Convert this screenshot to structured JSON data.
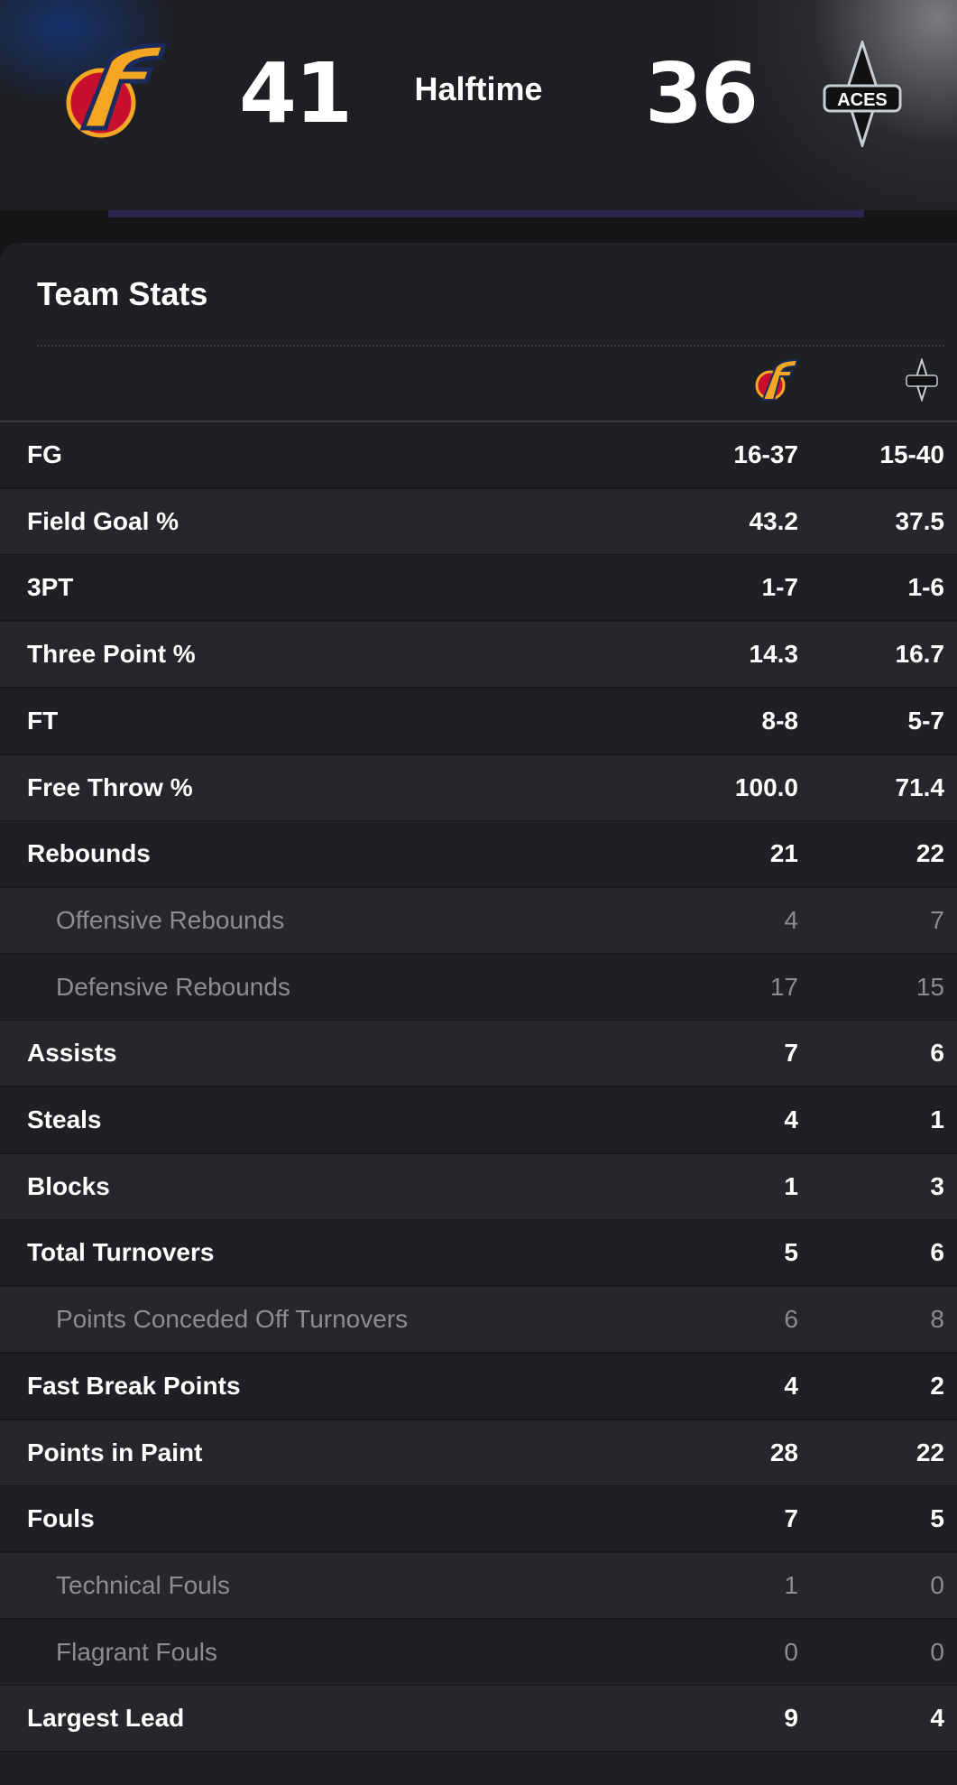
{
  "header": {
    "home_score": "41",
    "status": "Halftime",
    "away_score": "36",
    "away_logo_text": "ACES"
  },
  "title": "Team Stats",
  "table": {
    "rows": [
      {
        "label": "FG",
        "home": "16-37",
        "away": "15-40",
        "sub": false
      },
      {
        "label": "Field Goal %",
        "home": "43.2",
        "away": "37.5",
        "sub": false
      },
      {
        "label": "3PT",
        "home": "1-7",
        "away": "1-6",
        "sub": false
      },
      {
        "label": "Three Point %",
        "home": "14.3",
        "away": "16.7",
        "sub": false
      },
      {
        "label": "FT",
        "home": "8-8",
        "away": "5-7",
        "sub": false
      },
      {
        "label": "Free Throw %",
        "home": "100.0",
        "away": "71.4",
        "sub": false
      },
      {
        "label": "Rebounds",
        "home": "21",
        "away": "22",
        "sub": false
      },
      {
        "label": "Offensive Rebounds",
        "home": "4",
        "away": "7",
        "sub": true
      },
      {
        "label": "Defensive Rebounds",
        "home": "17",
        "away": "15",
        "sub": true
      },
      {
        "label": "Assists",
        "home": "7",
        "away": "6",
        "sub": false
      },
      {
        "label": "Steals",
        "home": "4",
        "away": "1",
        "sub": false
      },
      {
        "label": "Blocks",
        "home": "1",
        "away": "3",
        "sub": false
      },
      {
        "label": "Total Turnovers",
        "home": "5",
        "away": "6",
        "sub": false
      },
      {
        "label": "Points Conceded Off Turnovers",
        "home": "6",
        "away": "8",
        "sub": true
      },
      {
        "label": "Fast Break Points",
        "home": "4",
        "away": "2",
        "sub": false
      },
      {
        "label": "Points in Paint",
        "home": "28",
        "away": "22",
        "sub": false
      },
      {
        "label": "Fouls",
        "home": "7",
        "away": "5",
        "sub": false
      },
      {
        "label": "Technical Fouls",
        "home": "1",
        "away": "0",
        "sub": true
      },
      {
        "label": "Flagrant Fouls",
        "home": "0",
        "away": "0",
        "sub": true
      },
      {
        "label": "Largest Lead",
        "home": "9",
        "away": "4",
        "sub": false
      }
    ]
  }
}
